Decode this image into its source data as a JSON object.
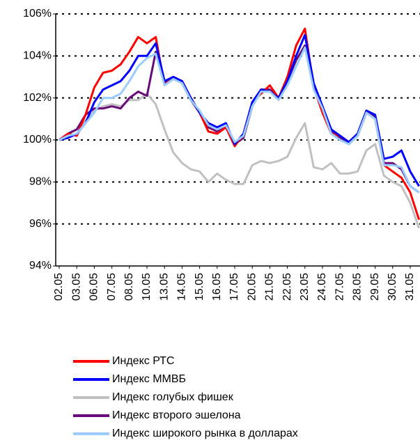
{
  "chart_data": {
    "type": "line",
    "categories": [
      "02.05",
      null,
      "03.05",
      null,
      "06.05",
      null,
      "07.05",
      null,
      "08.05",
      null,
      "10.05",
      null,
      "13.05",
      null,
      "14.05",
      null,
      "15.05",
      null,
      "16.05",
      null,
      "17.05",
      null,
      "20.05",
      null,
      "21.05",
      null,
      "22.05",
      null,
      "23.05",
      null,
      "24.05",
      null,
      "27.05",
      null,
      "28.05",
      null,
      "29.05",
      null,
      "30.05",
      null,
      "31.05",
      null
    ],
    "ylim": [
      94,
      106
    ],
    "yticks": [
      {
        "value": 94,
        "label": "94%"
      },
      {
        "value": 96,
        "label": "96%"
      },
      {
        "value": 98,
        "label": "98%"
      },
      {
        "value": 100,
        "label": "100%"
      },
      {
        "value": 102,
        "label": "102%"
      },
      {
        "value": 104,
        "label": "104%"
      },
      {
        "value": 106,
        "label": "106%"
      }
    ],
    "grid": true,
    "series": [
      {
        "name": "Индекс голубых фишек",
        "color": "#c0c0c0",
        "values": [
          100.0,
          100.3,
          100.2,
          100.9,
          101.4,
          101.6,
          101.7,
          101.6,
          101.9,
          101.9,
          102.2,
          101.7,
          100.5,
          99.4,
          98.9,
          98.6,
          98.5,
          98.0,
          98.4,
          98.1,
          97.9,
          97.9,
          98.8,
          99.0,
          98.9,
          99.0,
          99.2,
          100.1,
          100.8,
          98.7,
          98.6,
          98.9,
          98.4,
          98.4,
          98.5,
          99.5,
          99.8,
          98.3,
          98.0,
          97.8,
          97.0,
          95.8
        ]
      },
      {
        "name": "Индекс второго эшелона",
        "color": "#6a0a7a",
        "values": [
          100.0,
          100.3,
          100.5,
          101.2,
          101.5,
          101.5,
          101.6,
          101.5,
          102.0,
          102.3,
          102.1,
          104.2,
          102.7,
          103.0,
          102.7,
          101.9,
          101.3,
          100.6,
          100.4,
          100.7,
          99.8,
          100.1,
          101.6,
          102.4,
          102.4,
          102.0,
          102.8,
          103.8,
          104.5,
          102.5,
          101.5,
          100.4,
          100.1,
          99.8,
          100.2,
          101.3,
          101.1,
          98.9,
          98.9,
          98.6,
          97.8,
          97.5
        ]
      },
      {
        "name": "Индекс РТС",
        "color": "#ff0000",
        "values": [
          100.0,
          100.3,
          100.2,
          101.2,
          102.5,
          103.2,
          103.3,
          103.6,
          104.2,
          104.9,
          104.6,
          104.9,
          102.6,
          103.0,
          102.8,
          102.0,
          101.3,
          100.4,
          100.3,
          100.6,
          99.7,
          100.3,
          101.8,
          102.2,
          102.6,
          102.0,
          103.0,
          104.5,
          105.3,
          102.5,
          101.3,
          100.3,
          100.2,
          99.9,
          100.2,
          101.3,
          101.0,
          98.8,
          98.5,
          98.2,
          97.5,
          96.2
        ]
      },
      {
        "name": "Индекс ММВБ",
        "color": "#0000ff",
        "values": [
          100.0,
          100.1,
          100.3,
          100.8,
          101.8,
          102.4,
          102.6,
          102.8,
          103.3,
          104.0,
          104.0,
          104.6,
          102.8,
          103.0,
          102.8,
          102.0,
          101.3,
          100.8,
          100.6,
          100.8,
          99.8,
          100.3,
          101.8,
          102.4,
          102.3,
          102.0,
          102.8,
          104.0,
          105.0,
          102.7,
          101.6,
          100.5,
          100.2,
          99.9,
          100.3,
          101.4,
          101.2,
          99.1,
          99.2,
          99.5,
          98.5,
          97.8
        ]
      },
      {
        "name": "Индекс широкого рынка в долларах",
        "color": "#99ccff",
        "values": [
          100.0,
          100.2,
          100.3,
          100.8,
          101.3,
          102.0,
          102.0,
          102.2,
          102.8,
          103.5,
          103.9,
          104.1,
          102.6,
          102.9,
          102.7,
          101.9,
          101.4,
          100.7,
          100.5,
          100.7,
          99.9,
          100.2,
          101.6,
          102.3,
          102.3,
          101.9,
          102.6,
          103.5,
          104.4,
          102.4,
          101.5,
          100.3,
          100.0,
          99.8,
          100.2,
          101.3,
          101.0,
          98.8,
          98.8,
          98.7,
          97.8,
          97.5
        ]
      }
    ],
    "legend_order": [
      2,
      3,
      0,
      1,
      4
    ]
  }
}
